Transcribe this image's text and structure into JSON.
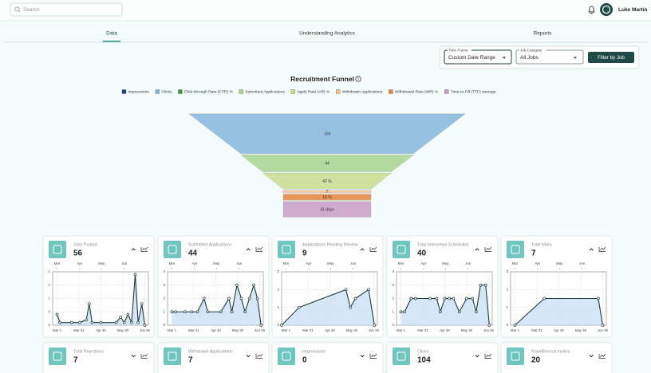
{
  "header": {
    "search_placeholder": "Search",
    "user_name": "Luke Martin"
  },
  "tabs": [
    "Data",
    "Understanding Analytics",
    "Reports"
  ],
  "filters": {
    "time_frame": {
      "label": "Time Frame",
      "value": "Custom Date Range"
    },
    "job_category": {
      "label": "Job Category",
      "value": "All Jobs"
    },
    "button": "Filter by Job"
  },
  "chart_data": [
    {
      "type": "funnel",
      "title": "Recruitment Funnel",
      "categories": [
        "Impressions",
        "Clicks",
        "Click-through Rate (CTR) %",
        "Submitted Applications",
        "Apply Rate (AR) %",
        "Withdrawn Applications",
        "Withdrawal Rate (WR) %",
        "Time-to-Fill (TTF) average"
      ],
      "colors": [
        "#24427a",
        "#86b6db",
        "#3d9a45",
        "#a6d38f",
        "#c8da8e",
        "#f3c08f",
        "#e5843a",
        "#c99ac5"
      ],
      "values": [
        0,
        104,
        null,
        44,
        42,
        7,
        16,
        41
      ],
      "value_labels": [
        null,
        "104",
        null,
        "44",
        "42 %",
        "7",
        "16 %",
        "41 days"
      ]
    },
    {
      "type": "line",
      "color": "#1d3a39",
      "x": [
        0,
        4,
        20,
        31,
        40,
        44,
        48,
        60,
        81,
        87,
        92,
        97,
        102,
        107,
        111,
        116,
        120
      ],
      "values": [
        0.2,
        0.05,
        0.05,
        0.05,
        0.1,
        0.4,
        0.05,
        0.05,
        0.05,
        0.15,
        0.05,
        0.2,
        0.05,
        0.95,
        0.05,
        0.4,
        0
      ],
      "xlim": [
        -6,
        125
      ],
      "xticks": [
        {
          "value": 0,
          "label": "Mar 1"
        },
        {
          "value": 30,
          "label": "Mar 31"
        },
        {
          "value": 60,
          "label": "Apr 30"
        },
        {
          "value": 90,
          "label": "May 30"
        },
        {
          "value": 120,
          "label": "Jun 29"
        }
      ],
      "month_ticks": [
        {
          "value": 0,
          "label": "Mar"
        },
        {
          "value": 31,
          "label": "Apr"
        },
        {
          "value": 61,
          "label": "May"
        },
        {
          "value": 92,
          "label": "Jun"
        }
      ],
      "ylim": [
        0,
        1
      ],
      "yticks": [
        {
          "value": 0,
          "label": "0"
        },
        {
          "value": 0.25,
          "label": "0"
        },
        {
          "value": 0.5,
          "label": "1"
        },
        {
          "value": 0.75,
          "label": "1"
        },
        {
          "value": 1,
          "label": "1"
        }
      ]
    },
    {
      "type": "line",
      "color": "#1d3a39",
      "x": [
        0,
        5,
        18,
        27,
        35,
        44,
        49,
        67,
        78,
        82,
        89,
        95,
        100,
        106,
        112,
        117,
        122
      ],
      "values": [
        1,
        1,
        1,
        1,
        1,
        2,
        1,
        1,
        2,
        1,
        3,
        2,
        1,
        2,
        3,
        2,
        0
      ],
      "xlim": [
        -6,
        125
      ],
      "xticks": [
        {
          "value": 0,
          "label": "Mar 1"
        },
        {
          "value": 30,
          "label": "Mar 31"
        },
        {
          "value": 60,
          "label": "Apr 30"
        },
        {
          "value": 90,
          "label": "May 30"
        },
        {
          "value": 120,
          "label": "Jun 29"
        }
      ],
      "month_ticks": [
        {
          "value": 0,
          "label": "Mar"
        },
        {
          "value": 31,
          "label": "Apr"
        },
        {
          "value": 61,
          "label": "May"
        },
        {
          "value": 92,
          "label": "Jun"
        }
      ],
      "ylim": [
        0,
        4
      ],
      "yticks": [
        0,
        1,
        2,
        3,
        4
      ]
    },
    {
      "type": "line",
      "color": "#1d3a39",
      "x": [
        -6,
        18,
        82,
        88,
        95,
        113,
        121
      ],
      "values": [
        0,
        1,
        2,
        1,
        1.5,
        2,
        0
      ],
      "xlim": [
        -6,
        125
      ],
      "xticks": [
        {
          "value": 0,
          "label": "Mar 1"
        },
        {
          "value": 30,
          "label": "Mar 31"
        },
        {
          "value": 60,
          "label": "Apr 30"
        },
        {
          "value": 90,
          "label": "May 30"
        },
        {
          "value": 120,
          "label": "Jun 29"
        }
      ],
      "month_ticks": [
        {
          "value": 0,
          "label": "Mar"
        },
        {
          "value": 31,
          "label": "Apr"
        },
        {
          "value": 61,
          "label": "May"
        },
        {
          "value": 92,
          "label": "Jun"
        }
      ],
      "ylim": [
        0,
        3
      ],
      "yticks": [
        0,
        1,
        2,
        3
      ]
    },
    {
      "type": "line",
      "color": "#1d3a39",
      "x": [
        0,
        5,
        14,
        20,
        40,
        49,
        54,
        60,
        66,
        72,
        80,
        90,
        98,
        103,
        109,
        116,
        121
      ],
      "values": [
        1,
        1,
        2,
        2,
        2,
        2,
        1,
        2,
        2,
        2,
        1,
        2,
        2,
        1,
        3,
        3,
        0
      ],
      "xlim": [
        -6,
        125
      ],
      "xticks": [
        {
          "value": 0,
          "label": "Mar 1"
        },
        {
          "value": 30,
          "label": "Mar 31"
        },
        {
          "value": 60,
          "label": "Apr 30"
        },
        {
          "value": 90,
          "label": "May 30"
        },
        {
          "value": 120,
          "label": "Jun 29"
        }
      ],
      "month_ticks": [
        {
          "value": 0,
          "label": "Mar"
        },
        {
          "value": 31,
          "label": "Apr"
        },
        {
          "value": 61,
          "label": "May"
        },
        {
          "value": 92,
          "label": "Jun"
        }
      ],
      "ylim": [
        0,
        4
      ],
      "yticks": [
        0,
        1,
        2,
        3,
        4
      ]
    },
    {
      "type": "line",
      "color": "#1d3a39",
      "x": [
        0,
        40,
        114,
        120
      ],
      "values": [
        0,
        1.5,
        1.5,
        0
      ],
      "xlim": [
        -6,
        125
      ],
      "xticks": [
        {
          "value": 0,
          "label": "Mar 1"
        },
        {
          "value": 30,
          "label": "Mar 31"
        },
        {
          "value": 60,
          "label": "Apr 30"
        },
        {
          "value": 90,
          "label": "May 30"
        },
        {
          "value": 120,
          "label": "Jun 29"
        }
      ],
      "month_ticks": [
        {
          "value": 0,
          "label": "Mar"
        },
        {
          "value": 31,
          "label": "Apr"
        },
        {
          "value": 61,
          "label": "May"
        },
        {
          "value": 92,
          "label": "Jun"
        }
      ],
      "ylim": [
        0,
        3
      ],
      "yticks": [
        0,
        1,
        2,
        3
      ]
    }
  ],
  "cards": [
    {
      "title": "Jobs Posted",
      "value": 56
    },
    {
      "title": "Submitted Applications",
      "value": 44
    },
    {
      "title": "Applications Pending Review",
      "value": 9
    },
    {
      "title": "Total Interviews Scheduled",
      "value": 40
    },
    {
      "title": "Total Hires",
      "value": 7
    },
    {
      "title": "Total Rejections",
      "value": 7
    },
    {
      "title": "Withdrawn Applications",
      "value": 7
    },
    {
      "title": "Impressions",
      "value": 0
    },
    {
      "title": "Clicks",
      "value": 104
    },
    {
      "title": "RapidRecruit Invites",
      "value": 20
    }
  ]
}
